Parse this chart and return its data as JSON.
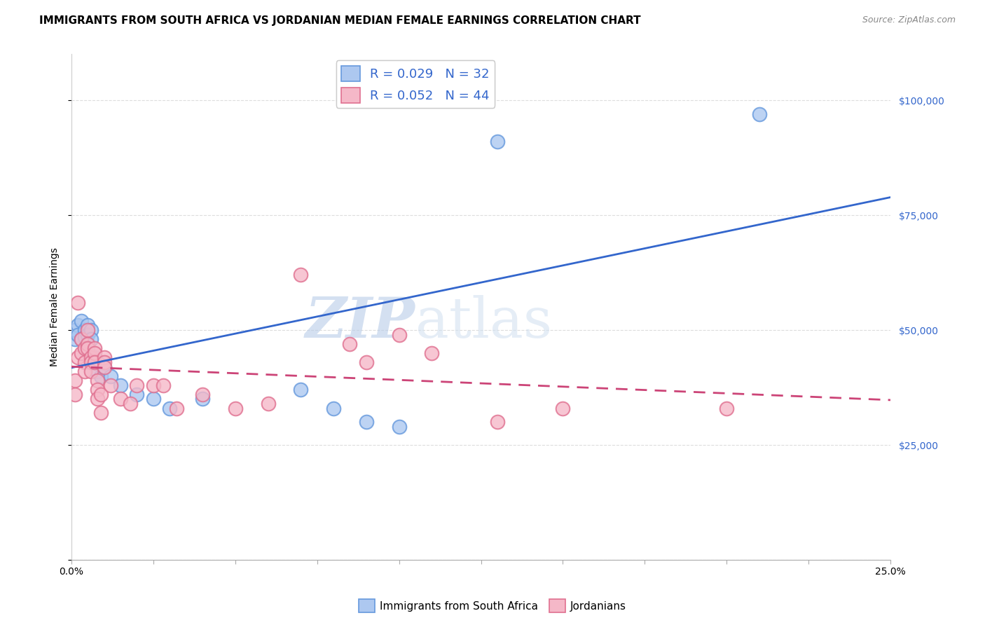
{
  "title": "IMMIGRANTS FROM SOUTH AFRICA VS JORDANIAN MEDIAN FEMALE EARNINGS CORRELATION CHART",
  "source": "Source: ZipAtlas.com",
  "ylabel": "Median Female Earnings",
  "watermark": "ZIPatlas",
  "blue_r": 0.029,
  "blue_n": 32,
  "pink_r": 0.052,
  "pink_n": 44,
  "blue_color": "#adc8f0",
  "blue_edge_color": "#6699dd",
  "blue_line_color": "#3366cc",
  "pink_color": "#f5b8c8",
  "pink_edge_color": "#e07090",
  "pink_line_color": "#cc4477",
  "legend_blue_label": "Immigrants from South Africa",
  "legend_pink_label": "Jordanians",
  "xlim": [
    0.0,
    0.25
  ],
  "ylim": [
    0,
    110000
  ],
  "yticks": [
    0,
    25000,
    50000,
    75000,
    100000
  ],
  "xtick_positions": [
    0.0,
    0.025,
    0.05,
    0.075,
    0.1,
    0.125,
    0.15,
    0.175,
    0.2,
    0.225,
    0.25
  ],
  "xtick_labels_show": [
    "0.0%",
    "",
    "",
    "",
    "",
    "",
    "",
    "",
    "",
    "",
    "25.0%"
  ],
  "blue_x": [
    0.001,
    0.001,
    0.002,
    0.002,
    0.003,
    0.003,
    0.004,
    0.004,
    0.004,
    0.005,
    0.005,
    0.005,
    0.006,
    0.006,
    0.007,
    0.007,
    0.008,
    0.008,
    0.009,
    0.01,
    0.012,
    0.015,
    0.02,
    0.025,
    0.03,
    0.04,
    0.07,
    0.08,
    0.09,
    0.1,
    0.13,
    0.21
  ],
  "blue_y": [
    48000,
    50000,
    51000,
    49000,
    52000,
    48000,
    50000,
    48500,
    46000,
    51000,
    49000,
    47000,
    50000,
    48000,
    44000,
    43000,
    41000,
    43000,
    40000,
    42000,
    40000,
    38000,
    36000,
    35000,
    33000,
    35000,
    37000,
    33000,
    30000,
    29000,
    91000,
    97000
  ],
  "pink_x": [
    0.001,
    0.001,
    0.002,
    0.002,
    0.003,
    0.003,
    0.004,
    0.004,
    0.004,
    0.005,
    0.005,
    0.005,
    0.006,
    0.006,
    0.006,
    0.007,
    0.007,
    0.007,
    0.008,
    0.008,
    0.008,
    0.009,
    0.009,
    0.01,
    0.01,
    0.01,
    0.012,
    0.015,
    0.018,
    0.02,
    0.025,
    0.028,
    0.032,
    0.04,
    0.05,
    0.06,
    0.07,
    0.085,
    0.09,
    0.1,
    0.11,
    0.13,
    0.15,
    0.2
  ],
  "pink_y": [
    39000,
    36000,
    56000,
    44000,
    48000,
    45000,
    46000,
    43000,
    41000,
    50000,
    47000,
    46000,
    44000,
    43000,
    41000,
    46000,
    45000,
    43000,
    39000,
    37000,
    35000,
    36000,
    32000,
    44000,
    43000,
    42000,
    38000,
    35000,
    34000,
    38000,
    38000,
    38000,
    33000,
    36000,
    33000,
    34000,
    62000,
    47000,
    43000,
    49000,
    45000,
    30000,
    33000,
    33000
  ],
  "grid_color": "#dddddd",
  "background_color": "#ffffff",
  "title_fontsize": 11,
  "axis_label_fontsize": 10,
  "tick_fontsize": 10,
  "legend_fontsize": 13,
  "watermark_color": "#ccddf0",
  "watermark_fontsize": 58
}
